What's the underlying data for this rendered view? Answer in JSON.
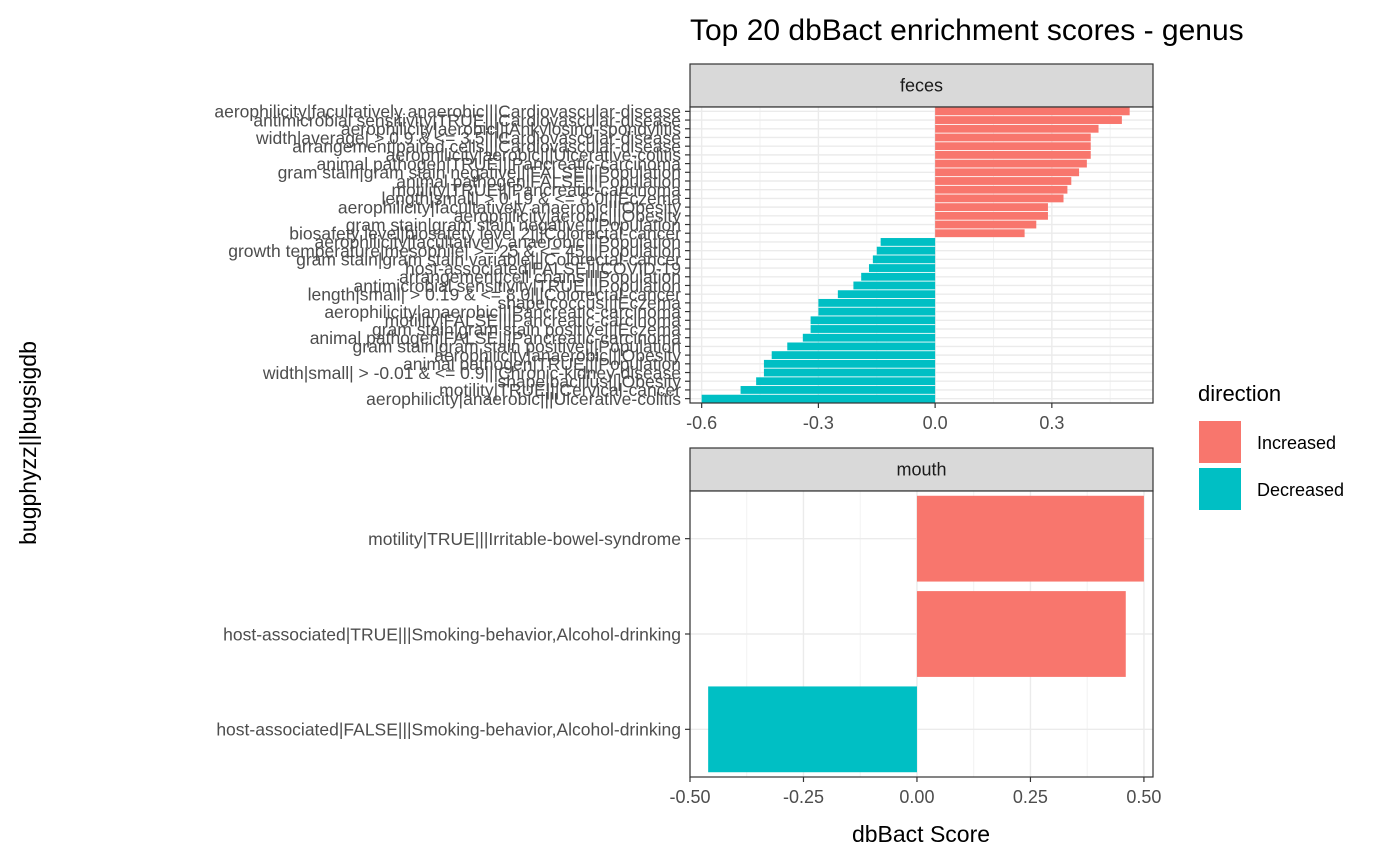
{
  "chart_data": {
    "type": "bar",
    "orientation": "horizontal",
    "facet_layout": "stacked",
    "title": "Top 20 dbBact enrichment scores - genus",
    "xlabel": "dbBact Score",
    "ylabel": "bugphyzz||bugsigdb",
    "legend": {
      "title": "direction",
      "placement": "right",
      "entries": [
        {
          "label": "Increased",
          "color": "#F8766D"
        },
        {
          "label": "Decreased",
          "color": "#00BFC4"
        }
      ]
    },
    "grid": true,
    "panels": [
      {
        "strip": "feces",
        "xlim": [
          -0.63,
          0.56
        ],
        "xticks": [
          -0.6,
          -0.3,
          0.0,
          0.3
        ],
        "xtick_labels": [
          "-0.6",
          "-0.3",
          "0.0",
          "0.3"
        ],
        "categories": [
          "aerophilicity|facultatively anaerobic|||Cardiovascular-disease",
          "antimicrobial sensitivity|TRUE|||Cardiovascular-disease",
          "aerophilicity|aerobic|||Ankylosing-spondylitis",
          "width|average| > 0.9 & <= 3.5|||Cardiovascular-disease",
          "arrangement|paired cells|||Cardiovascular-disease",
          "aerophilicity|aerobic|||Ulcerative-colitis",
          "animal pathogen|TRUE|||Pancreatic-carcinoma",
          "gram stain|gram stain negative|||FALSE|||Population",
          "animal pathogen|FALSE|||Population",
          "motility|TRUE|||Pancreatic-carcinoma",
          "length|small| > 0.19 & <= 8.0|||Eczema",
          "aerophilicity|facultatively anaerobic|||Obesity",
          "aerophilicity|aerobic|||Obesity",
          "gram stain|gram stain negative|||Population",
          "biosafety level|biosafety level 2|||Colorectal-cancer",
          "aerophilicity|facultatively anaerobic|||Population",
          "growth temperature|mesophile| >= 25 & <= 45|||Population",
          "gram stain|gram stain variable|||Colorectal-cancer",
          "host-associated|FALSE|||COVID-19",
          "arrangement|cell chains|||Population",
          "antimicrobial sensitivity|TRUE|||Population",
          "length|small| > 0.19 & <= 8.0|||Colorectal-cancer",
          "shape|coccus|||Eczema",
          "aerophilicity|anaerobic|||Pancreatic-carcinoma",
          "motility|FALSE|||Pancreatic-carcinoma",
          "gram stain|gram stain positive|||Eczema",
          "animal pathogen|FALSE|||Pancreatic-carcinoma",
          "gram stain|gram stain positive|||Population",
          "aerophilicity|anaerobic|||Obesity",
          "animal pathogen|TRUE|||Population",
          "width|small| > -0.01 & <= 0.9|||Chronic-kidney-disease",
          "shape|bacillus|||Obesity",
          "motility|TRUE|||Cervical-cancer",
          "aerophilicity|anaerobic|||Ulcerative-colitis"
        ],
        "values": [
          0.5,
          0.48,
          0.42,
          0.4,
          0.4,
          0.4,
          0.39,
          0.37,
          0.35,
          0.34,
          0.33,
          0.29,
          0.29,
          0.26,
          0.23,
          -0.14,
          -0.15,
          -0.16,
          -0.17,
          -0.19,
          -0.21,
          -0.25,
          -0.3,
          -0.3,
          -0.32,
          -0.32,
          -0.34,
          -0.38,
          -0.42,
          -0.44,
          -0.44,
          -0.46,
          -0.5,
          -0.6
        ]
      },
      {
        "strip": "mouth",
        "xlim": [
          -0.5,
          0.52
        ],
        "xticks": [
          -0.5,
          -0.25,
          0.0,
          0.25,
          0.5
        ],
        "xtick_labels": [
          "-0.50",
          "-0.25",
          "0.00",
          "0.25",
          "0.50"
        ],
        "categories": [
          "motility|TRUE|||Irritable-bowel-syndrome",
          "host-associated|TRUE|||Smoking-behavior,Alcohol-drinking",
          "host-associated|FALSE|||Smoking-behavior,Alcohol-drinking"
        ],
        "values": [
          0.5,
          0.46,
          -0.46
        ]
      }
    ]
  }
}
